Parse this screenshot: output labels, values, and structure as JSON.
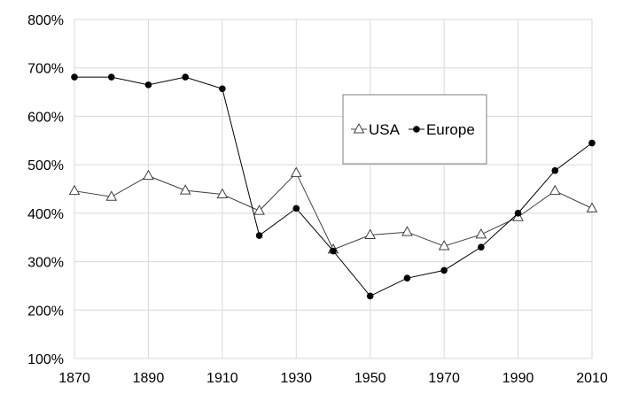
{
  "chart_data": {
    "type": "line",
    "title": "",
    "xlabel": "",
    "ylabel": "",
    "x": [
      1870,
      1880,
      1890,
      1900,
      1910,
      1920,
      1930,
      1940,
      1950,
      1960,
      1970,
      1980,
      1990,
      2000,
      2010
    ],
    "xlim": [
      1870,
      2010
    ],
    "ylim": [
      100,
      800
    ],
    "x_ticks": [
      "1870",
      "1890",
      "1910",
      "1930",
      "1950",
      "1970",
      "1990",
      "2010"
    ],
    "y_ticks": [
      "100%",
      "200%",
      "300%",
      "400%",
      "500%",
      "600%",
      "700%",
      "800%"
    ],
    "grid": true,
    "legend_placement": "center-right",
    "series": [
      {
        "name": "USA",
        "marker": "open-triangle",
        "color": "#404040",
        "values": [
          446,
          434,
          477,
          447,
          439,
          405,
          483,
          325,
          355,
          361,
          332,
          356,
          392,
          446,
          410
        ]
      },
      {
        "name": "Europe",
        "marker": "filled-circle",
        "color": "#000000",
        "values": [
          681,
          681,
          665,
          681,
          657,
          354,
          410,
          322,
          229,
          266,
          282,
          330,
          400,
          488,
          545
        ]
      }
    ]
  }
}
